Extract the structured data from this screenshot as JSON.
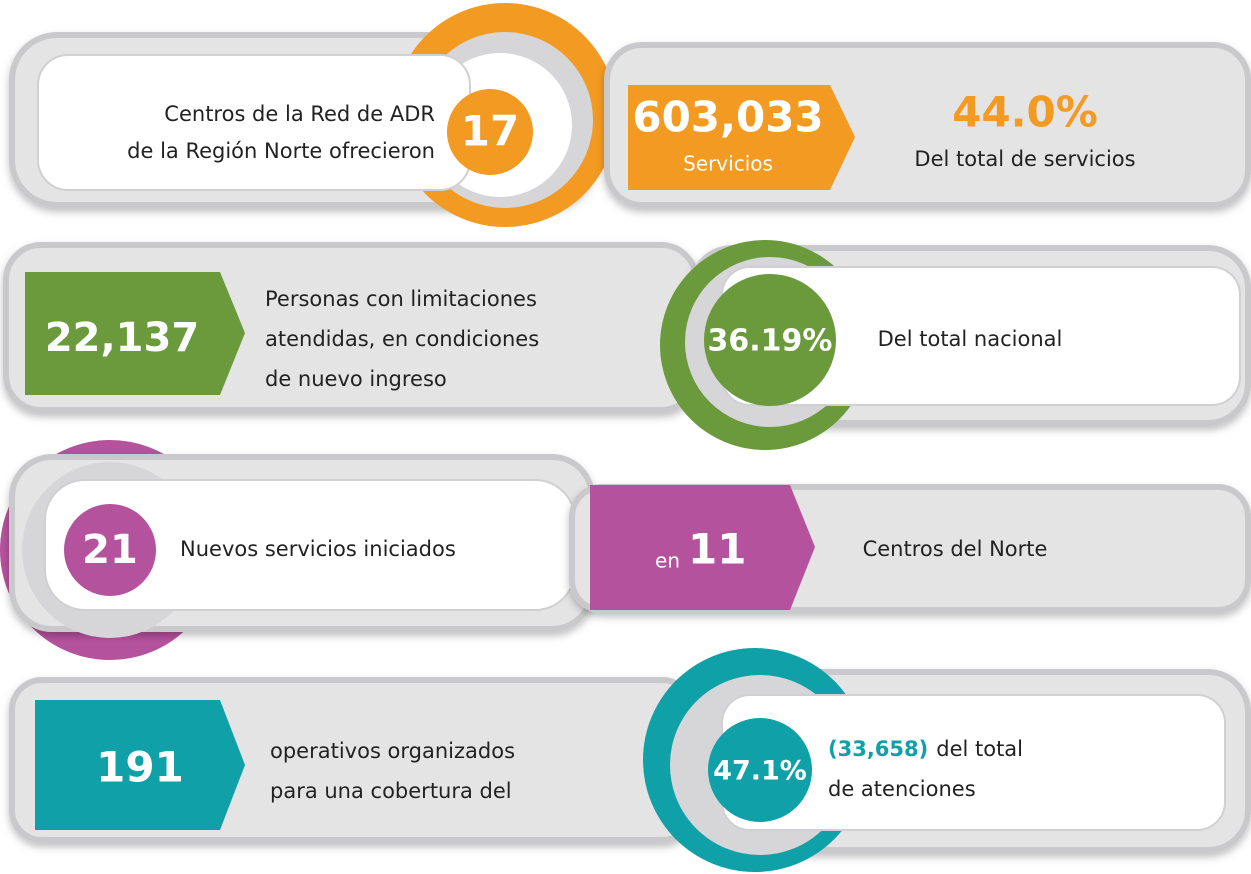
{
  "rows": [
    {
      "lines": [
        "Centros de la Red de ADR",
        "de la Región Norte ofrecieron"
      ],
      "count": "17",
      "number": "603,033",
      "number_label": "Servicios",
      "percent": "44.0%",
      "percent_label": "Del total de servicios"
    },
    {
      "number": "22,137",
      "lines": [
        "Personas con limitaciones",
        "atendidas, en condiciones",
        "de nuevo ingreso"
      ],
      "percent": "36.19%",
      "percent_label": "Del total nacional"
    },
    {
      "count": "21",
      "count_label": "Nuevos servicios iniciados",
      "prefix": "en",
      "number": "11",
      "number_label": "Centros del Norte"
    },
    {
      "number": "191",
      "lines": [
        "operativos organizados",
        "para una cobertura del"
      ],
      "percent": "47.1%",
      "highlight": "(33,658)",
      "percent_label": [
        "del total",
        "de atenciones"
      ]
    }
  ]
}
